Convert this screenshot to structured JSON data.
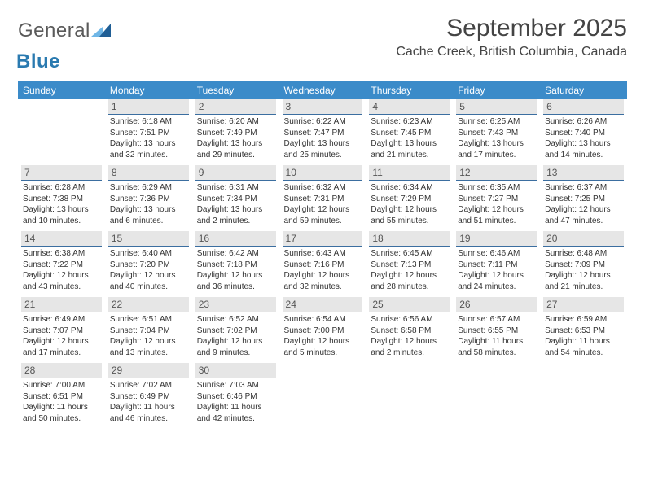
{
  "logo": {
    "text_general": "General",
    "text_blue": "Blue",
    "general_color": "#5a5a5a",
    "blue_color": "#2a7ab0",
    "mark_color_light": "#6fb6e6",
    "mark_color_dark": "#1f5e95"
  },
  "title": "September 2025",
  "location": "Cache Creek, British Columbia, Canada",
  "header_bg": "#3b8bc9",
  "header_text_color": "#ffffff",
  "daynum_bg": "#e6e6e6",
  "daynum_border": "#3b6ea0",
  "background_color": "#ffffff",
  "text_color": "#333333",
  "days_of_week": [
    "Sunday",
    "Monday",
    "Tuesday",
    "Wednesday",
    "Thursday",
    "Friday",
    "Saturday"
  ],
  "weeks": [
    [
      {
        "n": "",
        "sr": "",
        "ss": "",
        "dl": ""
      },
      {
        "n": "1",
        "sr": "Sunrise: 6:18 AM",
        "ss": "Sunset: 7:51 PM",
        "dl": "Daylight: 13 hours and 32 minutes."
      },
      {
        "n": "2",
        "sr": "Sunrise: 6:20 AM",
        "ss": "Sunset: 7:49 PM",
        "dl": "Daylight: 13 hours and 29 minutes."
      },
      {
        "n": "3",
        "sr": "Sunrise: 6:22 AM",
        "ss": "Sunset: 7:47 PM",
        "dl": "Daylight: 13 hours and 25 minutes."
      },
      {
        "n": "4",
        "sr": "Sunrise: 6:23 AM",
        "ss": "Sunset: 7:45 PM",
        "dl": "Daylight: 13 hours and 21 minutes."
      },
      {
        "n": "5",
        "sr": "Sunrise: 6:25 AM",
        "ss": "Sunset: 7:43 PM",
        "dl": "Daylight: 13 hours and 17 minutes."
      },
      {
        "n": "6",
        "sr": "Sunrise: 6:26 AM",
        "ss": "Sunset: 7:40 PM",
        "dl": "Daylight: 13 hours and 14 minutes."
      }
    ],
    [
      {
        "n": "7",
        "sr": "Sunrise: 6:28 AM",
        "ss": "Sunset: 7:38 PM",
        "dl": "Daylight: 13 hours and 10 minutes."
      },
      {
        "n": "8",
        "sr": "Sunrise: 6:29 AM",
        "ss": "Sunset: 7:36 PM",
        "dl": "Daylight: 13 hours and 6 minutes."
      },
      {
        "n": "9",
        "sr": "Sunrise: 6:31 AM",
        "ss": "Sunset: 7:34 PM",
        "dl": "Daylight: 13 hours and 2 minutes."
      },
      {
        "n": "10",
        "sr": "Sunrise: 6:32 AM",
        "ss": "Sunset: 7:31 PM",
        "dl": "Daylight: 12 hours and 59 minutes."
      },
      {
        "n": "11",
        "sr": "Sunrise: 6:34 AM",
        "ss": "Sunset: 7:29 PM",
        "dl": "Daylight: 12 hours and 55 minutes."
      },
      {
        "n": "12",
        "sr": "Sunrise: 6:35 AM",
        "ss": "Sunset: 7:27 PM",
        "dl": "Daylight: 12 hours and 51 minutes."
      },
      {
        "n": "13",
        "sr": "Sunrise: 6:37 AM",
        "ss": "Sunset: 7:25 PM",
        "dl": "Daylight: 12 hours and 47 minutes."
      }
    ],
    [
      {
        "n": "14",
        "sr": "Sunrise: 6:38 AM",
        "ss": "Sunset: 7:22 PM",
        "dl": "Daylight: 12 hours and 43 minutes."
      },
      {
        "n": "15",
        "sr": "Sunrise: 6:40 AM",
        "ss": "Sunset: 7:20 PM",
        "dl": "Daylight: 12 hours and 40 minutes."
      },
      {
        "n": "16",
        "sr": "Sunrise: 6:42 AM",
        "ss": "Sunset: 7:18 PM",
        "dl": "Daylight: 12 hours and 36 minutes."
      },
      {
        "n": "17",
        "sr": "Sunrise: 6:43 AM",
        "ss": "Sunset: 7:16 PM",
        "dl": "Daylight: 12 hours and 32 minutes."
      },
      {
        "n": "18",
        "sr": "Sunrise: 6:45 AM",
        "ss": "Sunset: 7:13 PM",
        "dl": "Daylight: 12 hours and 28 minutes."
      },
      {
        "n": "19",
        "sr": "Sunrise: 6:46 AM",
        "ss": "Sunset: 7:11 PM",
        "dl": "Daylight: 12 hours and 24 minutes."
      },
      {
        "n": "20",
        "sr": "Sunrise: 6:48 AM",
        "ss": "Sunset: 7:09 PM",
        "dl": "Daylight: 12 hours and 21 minutes."
      }
    ],
    [
      {
        "n": "21",
        "sr": "Sunrise: 6:49 AM",
        "ss": "Sunset: 7:07 PM",
        "dl": "Daylight: 12 hours and 17 minutes."
      },
      {
        "n": "22",
        "sr": "Sunrise: 6:51 AM",
        "ss": "Sunset: 7:04 PM",
        "dl": "Daylight: 12 hours and 13 minutes."
      },
      {
        "n": "23",
        "sr": "Sunrise: 6:52 AM",
        "ss": "Sunset: 7:02 PM",
        "dl": "Daylight: 12 hours and 9 minutes."
      },
      {
        "n": "24",
        "sr": "Sunrise: 6:54 AM",
        "ss": "Sunset: 7:00 PM",
        "dl": "Daylight: 12 hours and 5 minutes."
      },
      {
        "n": "25",
        "sr": "Sunrise: 6:56 AM",
        "ss": "Sunset: 6:58 PM",
        "dl": "Daylight: 12 hours and 2 minutes."
      },
      {
        "n": "26",
        "sr": "Sunrise: 6:57 AM",
        "ss": "Sunset: 6:55 PM",
        "dl": "Daylight: 11 hours and 58 minutes."
      },
      {
        "n": "27",
        "sr": "Sunrise: 6:59 AM",
        "ss": "Sunset: 6:53 PM",
        "dl": "Daylight: 11 hours and 54 minutes."
      }
    ],
    [
      {
        "n": "28",
        "sr": "Sunrise: 7:00 AM",
        "ss": "Sunset: 6:51 PM",
        "dl": "Daylight: 11 hours and 50 minutes."
      },
      {
        "n": "29",
        "sr": "Sunrise: 7:02 AM",
        "ss": "Sunset: 6:49 PM",
        "dl": "Daylight: 11 hours and 46 minutes."
      },
      {
        "n": "30",
        "sr": "Sunrise: 7:03 AM",
        "ss": "Sunset: 6:46 PM",
        "dl": "Daylight: 11 hours and 42 minutes."
      },
      {
        "n": "",
        "sr": "",
        "ss": "",
        "dl": ""
      },
      {
        "n": "",
        "sr": "",
        "ss": "",
        "dl": ""
      },
      {
        "n": "",
        "sr": "",
        "ss": "",
        "dl": ""
      },
      {
        "n": "",
        "sr": "",
        "ss": "",
        "dl": ""
      }
    ]
  ]
}
